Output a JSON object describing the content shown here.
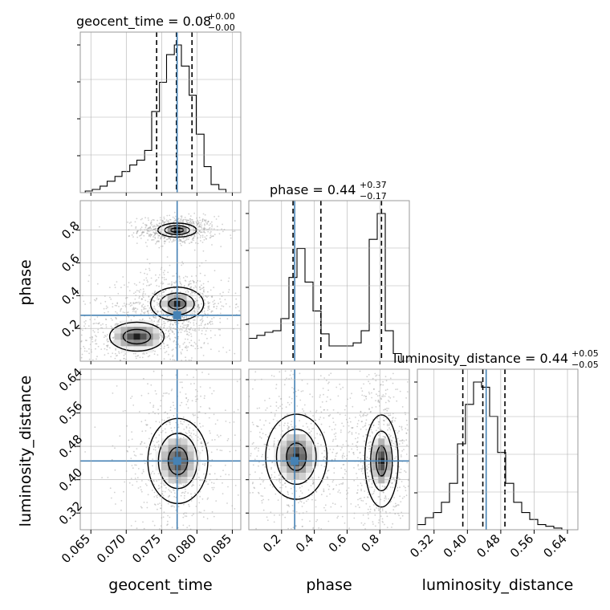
{
  "chart_data": {
    "type": "corner",
    "parameters": [
      "geocent_time",
      "phase",
      "luminosity_distance"
    ],
    "truths": {
      "geocent_time": 0.0772,
      "phase": 0.28,
      "luminosity_distance": 0.445
    },
    "truth_color": "#4682b4",
    "axes": {
      "geocent_time": {
        "range": [
          0.0635,
          0.0862
        ],
        "ticks": [
          "0.065",
          "0.070",
          "0.075",
          "0.080",
          "0.085"
        ],
        "tick_values": [
          0.065,
          0.07,
          0.075,
          0.08,
          0.085
        ]
      },
      "phase": {
        "range": [
          0.0,
          0.98
        ],
        "ticks": [
          "0.2",
          "0.4",
          "0.6",
          "0.8"
        ],
        "tick_values": [
          0.2,
          0.4,
          0.6,
          0.8
        ]
      },
      "luminosity_distance": {
        "range": [
          0.28,
          0.665
        ],
        "ticks": [
          "0.32",
          "0.40",
          "0.48",
          "0.56",
          "0.64"
        ],
        "tick_values": [
          0.32,
          0.4,
          0.48,
          0.56,
          0.64
        ]
      }
    },
    "titles": [
      {
        "param": "geocent_time",
        "text": "geocent_time = 0.08",
        "plus": "+0.00",
        "minus": "−0.00"
      },
      {
        "param": "phase",
        "text": "phase = 0.44",
        "plus": "+0.37",
        "minus": "−0.17"
      },
      {
        "param": "luminosity_distance",
        "text": "luminosity_distance = 0.44",
        "plus": "+0.05",
        "minus": "−0.05"
      }
    ],
    "quantiles": {
      "geocent_time": [
        0.0743,
        0.0771,
        0.0793
      ],
      "phase": [
        0.27,
        0.44,
        0.81
      ],
      "luminosity_distance": [
        0.389,
        0.437,
        0.49
      ]
    },
    "histograms": {
      "geocent_time": {
        "edges": [
          0.0642,
          0.0652,
          0.0663,
          0.0673,
          0.0684,
          0.0694,
          0.0705,
          0.0715,
          0.0726,
          0.0736,
          0.0747,
          0.0757,
          0.0768,
          0.0778,
          0.0789,
          0.0799,
          0.081,
          0.082,
          0.0831,
          0.0841,
          0.0852
        ],
        "values": [
          1,
          2,
          4,
          7,
          10,
          13,
          17,
          20,
          26,
          50,
          68,
          85,
          91,
          78,
          60,
          36,
          16,
          5,
          2,
          0
        ]
      },
      "phase": {
        "edges": [
          0.0,
          0.049,
          0.098,
          0.147,
          0.196,
          0.245,
          0.294,
          0.343,
          0.392,
          0.441,
          0.49,
          0.539,
          0.588,
          0.637,
          0.686,
          0.735,
          0.784,
          0.833,
          0.882,
          0.931,
          0.98
        ],
        "values": [
          15,
          17,
          19,
          20,
          28,
          55,
          74,
          52,
          33,
          18,
          10,
          10,
          10,
          12,
          20,
          80,
          97,
          20,
          5,
          0
        ]
      },
      "luminosity_distance": {
        "edges": [
          0.28,
          0.2993,
          0.3185,
          0.3378,
          0.357,
          0.3763,
          0.3955,
          0.4148,
          0.434,
          0.4533,
          0.4725,
          0.4918,
          0.511,
          0.5303,
          0.5495,
          0.5688,
          0.588,
          0.6073,
          0.6265,
          0.6458,
          0.665
        ],
        "values": [
          3,
          7,
          10,
          16,
          27,
          50,
          73,
          86,
          83,
          66,
          45,
          27,
          16,
          10,
          6,
          3,
          2,
          1,
          0,
          0
        ]
      }
    },
    "contours": {
      "phase_vs_geocent_time": [
        {
          "center": [
            0.0772,
            0.8
          ],
          "radii": [
            0.0016,
            0.025
          ],
          "levels": [
            1,
            2,
            3
          ]
        },
        {
          "center": [
            0.0772,
            0.35
          ],
          "radii": [
            0.0022,
            0.06
          ],
          "levels": [
            1,
            2,
            3
          ]
        },
        {
          "center": [
            0.0715,
            0.15
          ],
          "radii": [
            0.0035,
            0.08
          ],
          "levels": [
            1,
            2
          ]
        }
      ],
      "luminosity_distance_vs_geocent_time": [
        {
          "center": [
            0.0773,
            0.445
          ],
          "radii": [
            0.0025,
            0.06
          ],
          "levels": [
            1,
            2,
            3
          ]
        }
      ],
      "luminosity_distance_vs_phase": [
        {
          "center": [
            0.29,
            0.455
          ],
          "radii": [
            0.11,
            0.06
          ],
          "levels": [
            1,
            2,
            3
          ]
        },
        {
          "center": [
            0.81,
            0.445
          ],
          "radii": [
            0.06,
            0.065
          ],
          "levels": [
            1,
            2,
            3
          ]
        }
      ]
    }
  }
}
